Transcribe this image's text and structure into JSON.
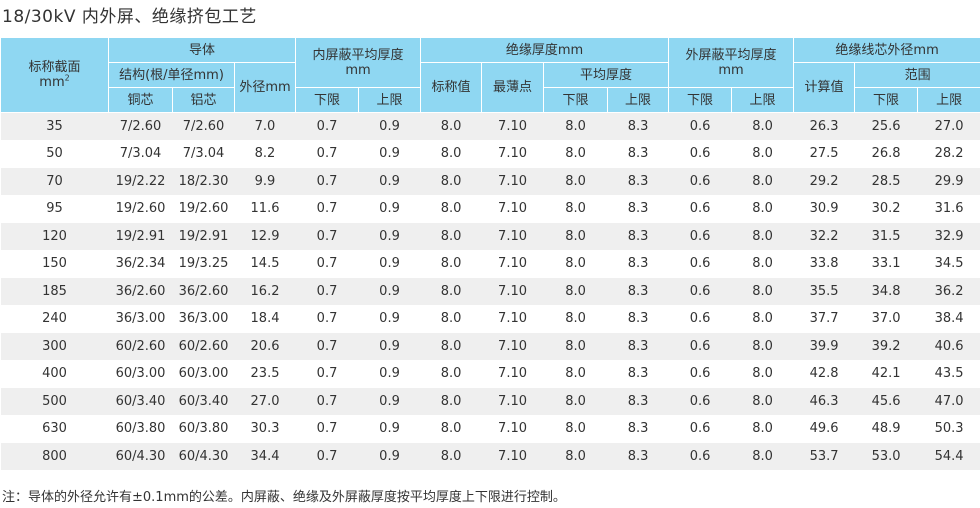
{
  "title": "18/30kV   内外屏、绝缘挤包工艺",
  "headers": {
    "section_area": "标称截面",
    "section_area_unit": "mm",
    "section_area_sup": "2",
    "conductor": "导体",
    "structure": "结构(根/单径mm)",
    "copper_core": "铜芯",
    "aluminum_core": "铝芯",
    "outer_diameter": "外径mm",
    "inner_screen": "内屏蔽平均厚度",
    "inner_screen_unit": "mm",
    "inner_lower": "下限",
    "inner_upper": "上限",
    "insulation_thickness": "绝缘厚度mm",
    "nominal_value": "标称值",
    "thinnest_point": "最薄点",
    "average_thickness": "平均厚度",
    "avg_lower": "下限",
    "avg_upper": "上限",
    "outer_screen": "外屏蔽平均厚度",
    "outer_screen_unit": "mm",
    "outer_lower": "下限",
    "outer_upper": "上限",
    "core_outer_diameter": "绝缘线芯外径mm",
    "calculated_value": "计算值",
    "range": "范围",
    "range_lower": "下限",
    "range_upper": "上限"
  },
  "rows": [
    [
      "35",
      "7/2.60",
      "7/2.60",
      "7.0",
      "0.7",
      "0.9",
      "8.0",
      "7.10",
      "8.0",
      "8.3",
      "0.6",
      "8.0",
      "26.3",
      "25.6",
      "27.0"
    ],
    [
      "50",
      "7/3.04",
      "7/3.04",
      "8.2",
      "0.7",
      "0.9",
      "8.0",
      "7.10",
      "8.0",
      "8.3",
      "0.6",
      "8.0",
      "27.5",
      "26.8",
      "28.2"
    ],
    [
      "70",
      "19/2.22",
      "18/2.30",
      "9.9",
      "0.7",
      "0.9",
      "8.0",
      "7.10",
      "8.0",
      "8.3",
      "0.6",
      "8.0",
      "29.2",
      "28.5",
      "29.9"
    ],
    [
      "95",
      "19/2.60",
      "19/2.60",
      "11.6",
      "0.7",
      "0.9",
      "8.0",
      "7.10",
      "8.0",
      "8.3",
      "0.6",
      "8.0",
      "30.9",
      "30.2",
      "31.6"
    ],
    [
      "120",
      "19/2.91",
      "19/2.91",
      "12.9",
      "0.7",
      "0.9",
      "8.0",
      "7.10",
      "8.0",
      "8.3",
      "0.6",
      "8.0",
      "32.2",
      "31.5",
      "32.9"
    ],
    [
      "150",
      "36/2.34",
      "19/3.25",
      "14.5",
      "0.7",
      "0.9",
      "8.0",
      "7.10",
      "8.0",
      "8.3",
      "0.6",
      "8.0",
      "33.8",
      "33.1",
      "34.5"
    ],
    [
      "185",
      "36/2.60",
      "36/2.60",
      "16.2",
      "0.7",
      "0.9",
      "8.0",
      "7.10",
      "8.0",
      "8.3",
      "0.6",
      "8.0",
      "35.5",
      "34.8",
      "36.2"
    ],
    [
      "240",
      "36/3.00",
      "36/3.00",
      "18.4",
      "0.7",
      "0.9",
      "8.0",
      "7.10",
      "8.0",
      "8.3",
      "0.6",
      "8.0",
      "37.7",
      "37.0",
      "38.4"
    ],
    [
      "300",
      "60/2.60",
      "60/2.60",
      "20.6",
      "0.7",
      "0.9",
      "8.0",
      "7.10",
      "8.0",
      "8.3",
      "0.6",
      "8.0",
      "39.9",
      "39.2",
      "40.6"
    ],
    [
      "400",
      "60/3.00",
      "60/3.00",
      "23.5",
      "0.7",
      "0.9",
      "8.0",
      "7.10",
      "8.0",
      "8.3",
      "0.6",
      "8.0",
      "42.8",
      "42.1",
      "43.5"
    ],
    [
      "500",
      "60/3.40",
      "60/3.40",
      "27.0",
      "0.7",
      "0.9",
      "8.0",
      "7.10",
      "8.0",
      "8.3",
      "0.6",
      "8.0",
      "46.3",
      "45.6",
      "47.0"
    ],
    [
      "630",
      "60/3.80",
      "60/3.80",
      "30.3",
      "0.7",
      "0.9",
      "8.0",
      "7.10",
      "8.0",
      "8.3",
      "0.6",
      "8.0",
      "49.6",
      "48.9",
      "50.3"
    ],
    [
      "800",
      "60/4.30",
      "60/4.30",
      "34.4",
      "0.7",
      "0.9",
      "8.0",
      "7.10",
      "8.0",
      "8.3",
      "0.6",
      "8.0",
      "53.7",
      "53.0",
      "54.4"
    ]
  ],
  "note": "注：导体的外径允许有±0.1mm的公差。内屏蔽、绝缘及外屏蔽厚度按平均厚度上下限进行控制。",
  "colors": {
    "header_background": "#8fd7f2",
    "stripe_row": "#efefef",
    "text": "#333333"
  }
}
